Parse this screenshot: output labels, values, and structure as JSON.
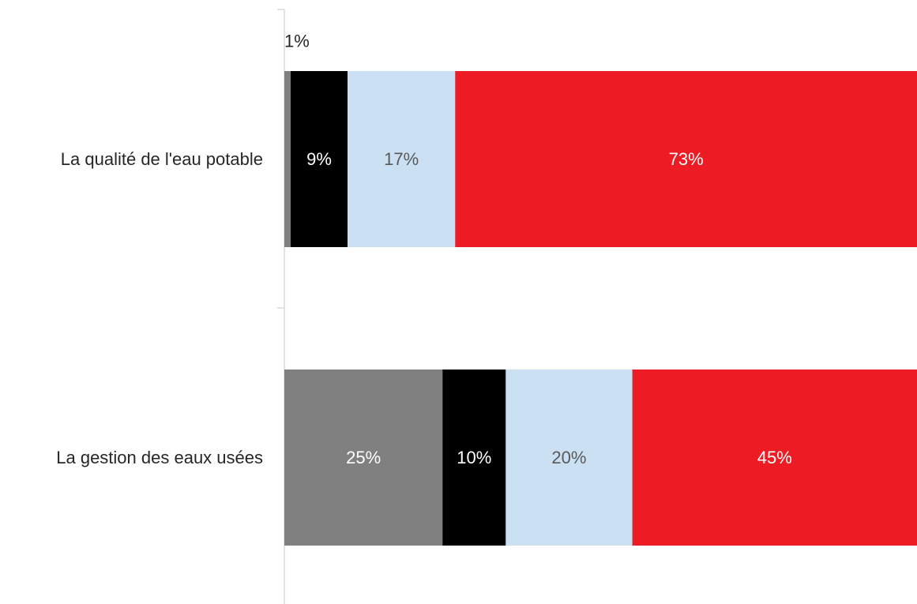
{
  "chart_data": {
    "type": "bar",
    "orientation": "horizontal",
    "stacked": true,
    "percent": true,
    "categories": [
      "La qualité de l'eau potable",
      "La gestion des eaux usées"
    ],
    "series": [
      {
        "values": [
          1,
          25
        ],
        "labels": [
          "1%",
          "25%"
        ],
        "color": "#808080",
        "label_color": "#ffffff"
      },
      {
        "values": [
          9,
          10
        ],
        "labels": [
          "9%",
          "10%"
        ],
        "color": "#000000",
        "label_color": "#ffffff"
      },
      {
        "values": [
          17,
          20
        ],
        "labels": [
          "17%",
          "20%"
        ],
        "color": "#cce0f3",
        "label_color": "#595959"
      },
      {
        "values": [
          73,
          45
        ],
        "labels": [
          "73%",
          "45%"
        ],
        "color": "#ed1c24",
        "label_color": "#ffffff"
      }
    ],
    "xlim": [
      0,
      100
    ],
    "grid": false,
    "legend": false
  }
}
